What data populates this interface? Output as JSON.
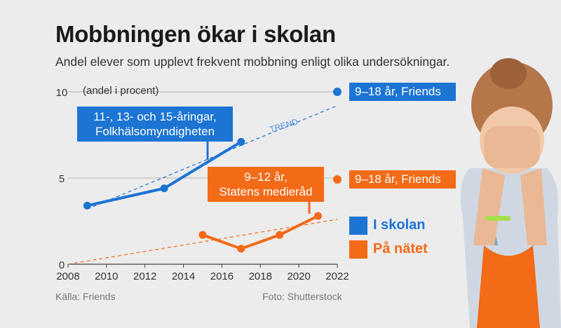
{
  "title": "Mobbningen ökar i skolan",
  "subtitle": "Andel elever som upplevt frekvent mobbning enligt olika undersökningar.",
  "source": "Källa: Friends",
  "photo_credit": "Foto: Shutterstock",
  "colors": {
    "blue": "#1c74d3",
    "orange": "#f36a17",
    "background": "#ececec"
  },
  "chart_data": {
    "type": "line",
    "title": "Mobbningen ökar i skolan",
    "ylabel": "(andel i procent)",
    "xlim": [
      2008,
      2022
    ],
    "ylim": [
      0,
      10
    ],
    "x_ticks": [
      "2008",
      "2010",
      "2012",
      "2014",
      "2016",
      "2018",
      "2020",
      "2022"
    ],
    "y_ticks": [
      "0",
      "5",
      "10"
    ],
    "grid": true,
    "trend_label": "TREND",
    "series": [
      {
        "name": "11-, 13- och 15-åringar, Folkhälsomyndigheten",
        "label_lines": [
          "11-, 13- och 15-åringar,",
          "Folkhälsomyndigheten"
        ],
        "color": "#1c74d3",
        "x": [
          2009,
          2013,
          2017
        ],
        "y": [
          3.4,
          4.4,
          7.1
        ],
        "trend": {
          "x": [
            2009,
            2022
          ],
          "y": [
            3.2,
            9.2
          ]
        }
      },
      {
        "name": "9–12 år, Statens medieråd",
        "label_lines": [
          "9–12 år,",
          "Statens medieråd"
        ],
        "color": "#f36a17",
        "x": [
          2015,
          2017,
          2019,
          2021
        ],
        "y": [
          1.7,
          0.9,
          1.7,
          2.8
        ],
        "trend": {
          "x": [
            2008,
            2022
          ],
          "y": [
            0.0,
            2.6
          ]
        }
      },
      {
        "name": "9–18 år, Friends",
        "color": "#1c74d3",
        "x": [
          2022
        ],
        "y": [
          10
        ]
      },
      {
        "name": "9–18 år, Friends",
        "color": "#f36a17",
        "x": [
          2022
        ],
        "y": [
          5
        ]
      }
    ],
    "legend": [
      {
        "label": "I skolan",
        "color": "#1c74d3"
      },
      {
        "label": "På nätet",
        "color": "#f36a17"
      }
    ]
  }
}
